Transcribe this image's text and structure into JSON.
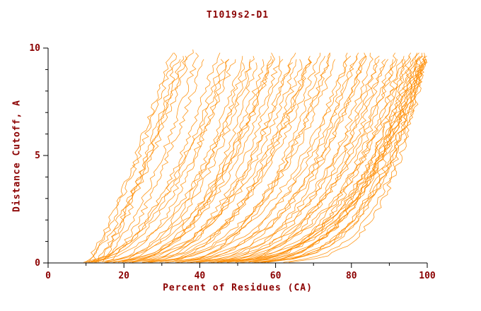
{
  "chart_data": {
    "type": "line",
    "title": "T1019s2-D1",
    "xlabel": "Percent of Residues (CA)",
    "ylabel": "Distance Cutoff, A",
    "xlim": [
      0,
      100
    ],
    "ylim": [
      0,
      10
    ],
    "x_major_ticks": [
      0,
      20,
      40,
      60,
      80,
      100
    ],
    "x_minor_step": 10,
    "y_major_ticks": [
      0,
      5,
      10
    ],
    "y_minor_step": 1,
    "grid": false,
    "legend": "none",
    "line_color": "#ff8c00",
    "axis_color": "#000000",
    "text_color": "#8b0000",
    "background_color": "#ffffff",
    "y_top_of_curves": 9.7,
    "curves_model": "x(y) = xstart + (xend - xstart) * (y/10)^(1/q); each curve is one model's cumulative percent of CA residues under the distance cutoff",
    "curves": [
      [
        10,
        33,
        1.25
      ],
      [
        11,
        34,
        1.2
      ],
      [
        12,
        35,
        1.4
      ],
      [
        13,
        36,
        1.3
      ],
      [
        9,
        37,
        1.5
      ],
      [
        14,
        38,
        1.2
      ],
      [
        12,
        40,
        1.6
      ],
      [
        15,
        42,
        1.45
      ],
      [
        8,
        45,
        2.2
      ],
      [
        10,
        47,
        2.0
      ],
      [
        12,
        48,
        2.4
      ],
      [
        9,
        50,
        2.1
      ],
      [
        14,
        52,
        2.3
      ],
      [
        11,
        53,
        2.6
      ],
      [
        16,
        55,
        2.2
      ],
      [
        13,
        56,
        2.8
      ],
      [
        18,
        58,
        2.4
      ],
      [
        10,
        60,
        2.9
      ],
      [
        20,
        60,
        2.1
      ],
      [
        15,
        62,
        2.5
      ],
      [
        22,
        63,
        2.3
      ],
      [
        12,
        65,
        3.0
      ],
      [
        24,
        65,
        2.2
      ],
      [
        17,
        67,
        2.6
      ],
      [
        26,
        68,
        2.4
      ],
      [
        14,
        70,
        3.1
      ],
      [
        28,
        70,
        2.2
      ],
      [
        19,
        72,
        2.7
      ],
      [
        30,
        73,
        2.5
      ],
      [
        16,
        75,
        3.2
      ],
      [
        32,
        75,
        2.3
      ],
      [
        21,
        77,
        2.8
      ],
      [
        18,
        80,
        3.0
      ],
      [
        34,
        80,
        2.4
      ],
      [
        23,
        82,
        2.9
      ],
      [
        36,
        82,
        2.5
      ],
      [
        20,
        84,
        3.3
      ],
      [
        38,
        84,
        2.6
      ],
      [
        25,
        85,
        3.0
      ],
      [
        40,
        86,
        2.7
      ],
      [
        22,
        88,
        3.4
      ],
      [
        42,
        88,
        2.8
      ],
      [
        27,
        90,
        3.1
      ],
      [
        44,
        90,
        2.6
      ],
      [
        24,
        92,
        3.5
      ],
      [
        46,
        92,
        2.9
      ],
      [
        29,
        93,
        3.2
      ],
      [
        48,
        94,
        2.7
      ],
      [
        26,
        95,
        3.6
      ],
      [
        50,
        95,
        3.0
      ],
      [
        31,
        96,
        3.3
      ],
      [
        45,
        97,
        2.8
      ],
      [
        28,
        98,
        3.7
      ],
      [
        47,
        98,
        3.1
      ],
      [
        33,
        99,
        3.4
      ],
      [
        49,
        99,
        2.9
      ],
      [
        30,
        100,
        3.8
      ],
      [
        50,
        100,
        3.2
      ],
      [
        35,
        100,
        3.5
      ],
      [
        40,
        100,
        3.0
      ],
      [
        36,
        100,
        4.5
      ],
      [
        42,
        100,
        4.2
      ],
      [
        38,
        99,
        4.8
      ],
      [
        44,
        98,
        4.0
      ],
      [
        34,
        97,
        4.4
      ],
      [
        46,
        100,
        5.0
      ],
      [
        32,
        96,
        4.6
      ],
      [
        48,
        100,
        4.3
      ],
      [
        5,
        55,
        2.5
      ],
      [
        6,
        60,
        2.8
      ],
      [
        6,
        48,
        2.3
      ],
      [
        7,
        70,
        3.0
      ]
    ]
  }
}
